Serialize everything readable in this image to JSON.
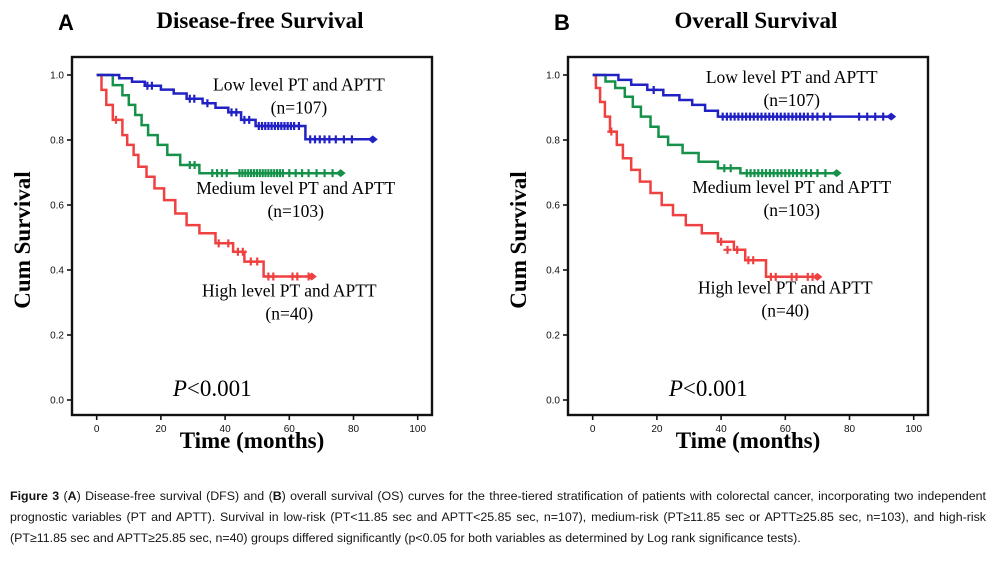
{
  "figure_caption": {
    "segments": [
      {
        "text": "Figure 3 ",
        "bold": true
      },
      {
        "text": "(",
        "bold": false
      },
      {
        "text": "A",
        "bold": true
      },
      {
        "text": ") Disease-free survival (DFS) and (",
        "bold": false
      },
      {
        "text": "B",
        "bold": true
      },
      {
        "text": ") overall survival (OS) curves for the three-tiered stratification of patients with colorectal cancer, incorporating two independent prognostic variables (PT and APTT). Survival in low-risk (PT<11.85 sec and APTT<25.85 sec, n=107), medium-risk (PT≥11.85 sec or APTT≥25.85 sec, n=103), and high-risk (PT≥11.85 sec and APTT≥25.85 sec, n=40) groups differed significantly (p<0.05 for both variables as determined by Log rank significance tests).",
        "bold": false
      }
    ]
  },
  "chart_data": [
    {
      "type": "line",
      "subtype": "kaplan_meier_step",
      "panel": "A",
      "title": "Disease-free Survival",
      "xlabel": "Time (months)",
      "ylabel": "Cum Survival",
      "xlim": [
        0,
        100
      ],
      "ylim": [
        0.0,
        1.0
      ],
      "xticks": [
        0,
        20,
        40,
        60,
        80,
        100
      ],
      "yticks": [
        0.0,
        0.2,
        0.4,
        0.6,
        0.8,
        1.0
      ],
      "grid": false,
      "legend": "in-plot labels",
      "pvalue": {
        "italic": "P",
        "rest": "<0.001",
        "pos": [
          36,
          0.012
        ]
      },
      "series": [
        {
          "name": "Low level PT and APTT",
          "n": 107,
          "color": "#2222c4",
          "label_lines": [
            "Low level PT and APTT",
            "(n=107)"
          ],
          "label_pos": [
            63,
            0.952
          ],
          "steps": [
            [
              0,
              1.0
            ],
            [
              7,
              0.99
            ],
            [
              11,
              0.979
            ],
            [
              15,
              0.967
            ],
            [
              20,
              0.955
            ],
            [
              24,
              0.943
            ],
            [
              28,
              0.927
            ],
            [
              33,
              0.913
            ],
            [
              37,
              0.899
            ],
            [
              41,
              0.885
            ],
            [
              45,
              0.862
            ],
            [
              49.5,
              0.843
            ],
            [
              65,
              0.802
            ],
            [
              86,
              0.802
            ]
          ],
          "censors": [
            [
              15.8,
              0.967
            ],
            [
              17.2,
              0.967
            ],
            [
              29,
              0.927
            ],
            [
              30.4,
              0.927
            ],
            [
              34.5,
              0.913
            ],
            [
              42,
              0.885
            ],
            [
              43.5,
              0.885
            ],
            [
              46,
              0.862
            ],
            [
              47.5,
              0.862
            ],
            [
              50.5,
              0.843
            ],
            [
              51.5,
              0.843
            ],
            [
              52.5,
              0.843
            ],
            [
              53.5,
              0.843
            ],
            [
              54.5,
              0.843
            ],
            [
              55.5,
              0.843
            ],
            [
              56.5,
              0.843
            ],
            [
              57.5,
              0.843
            ],
            [
              58.5,
              0.843
            ],
            [
              59.5,
              0.843
            ],
            [
              60.5,
              0.843
            ],
            [
              61.5,
              0.843
            ],
            [
              63,
              0.843
            ],
            [
              66.5,
              0.802
            ],
            [
              68,
              0.802
            ],
            [
              69.5,
              0.802
            ],
            [
              71,
              0.802
            ],
            [
              72.5,
              0.802
            ],
            [
              74.5,
              0.802
            ],
            [
              77,
              0.802
            ],
            [
              79.5,
              0.802
            ]
          ]
        },
        {
          "name": "Medium level PT and APTT",
          "n": 103,
          "color": "#16914a",
          "label_lines": [
            "Medium level PT and APTT",
            "(n=103)"
          ],
          "label_pos": [
            62,
            0.634
          ],
          "steps": [
            [
              0,
              1.0
            ],
            [
              5,
              0.969
            ],
            [
              8,
              0.938
            ],
            [
              10,
              0.908
            ],
            [
              12,
              0.877
            ],
            [
              14,
              0.846
            ],
            [
              16,
              0.815
            ],
            [
              19,
              0.785
            ],
            [
              22,
              0.754
            ],
            [
              26,
              0.723
            ],
            [
              32,
              0.698
            ],
            [
              76,
              0.698
            ]
          ],
          "censors": [
            [
              29,
              0.723
            ],
            [
              30.5,
              0.723
            ],
            [
              36,
              0.698
            ],
            [
              37.5,
              0.698
            ],
            [
              39,
              0.698
            ],
            [
              40.5,
              0.698
            ],
            [
              44.5,
              0.698
            ],
            [
              45.4,
              0.698
            ],
            [
              46.3,
              0.698
            ],
            [
              47.2,
              0.698
            ],
            [
              48.1,
              0.698
            ],
            [
              49,
              0.698
            ],
            [
              49.9,
              0.698
            ],
            [
              50.8,
              0.698
            ],
            [
              51.7,
              0.698
            ],
            [
              52.6,
              0.698
            ],
            [
              53.5,
              0.698
            ],
            [
              54.4,
              0.698
            ],
            [
              55.3,
              0.698
            ],
            [
              56.2,
              0.698
            ],
            [
              57.1,
              0.698
            ],
            [
              58,
              0.698
            ],
            [
              60,
              0.698
            ],
            [
              62,
              0.698
            ],
            [
              64,
              0.698
            ],
            [
              66,
              0.698
            ],
            [
              68.5,
              0.698
            ],
            [
              71,
              0.698
            ],
            [
              73.5,
              0.698
            ]
          ]
        },
        {
          "name": "High level PT and APTT",
          "n": 40,
          "color": "#f04141",
          "label_lines": [
            "High level PT and APTT",
            "(n=40)"
          ],
          "label_pos": [
            60,
            0.318
          ],
          "steps": [
            [
              0,
              1.0
            ],
            [
              1.5,
              0.954
            ],
            [
              3,
              0.908
            ],
            [
              5,
              0.862
            ],
            [
              8,
              0.815
            ],
            [
              9.5,
              0.785
            ],
            [
              11.5,
              0.754
            ],
            [
              13,
              0.718
            ],
            [
              15.5,
              0.687
            ],
            [
              18,
              0.651
            ],
            [
              21,
              0.615
            ],
            [
              24.5,
              0.574
            ],
            [
              28,
              0.538
            ],
            [
              32,
              0.513
            ],
            [
              37,
              0.482
            ],
            [
              42.5,
              0.456
            ],
            [
              46,
              0.426
            ],
            [
              52,
              0.38
            ],
            [
              67,
              0.38
            ]
          ],
          "censors": [
            [
              6,
              0.862
            ],
            [
              38,
              0.482
            ],
            [
              41,
              0.482
            ],
            [
              44,
              0.456
            ],
            [
              45.5,
              0.456
            ],
            [
              48,
              0.426
            ],
            [
              50,
              0.426
            ],
            [
              53.5,
              0.38
            ],
            [
              55,
              0.38
            ],
            [
              61,
              0.38
            ],
            [
              62.5,
              0.38
            ],
            [
              66,
              0.38
            ]
          ]
        }
      ]
    },
    {
      "type": "line",
      "subtype": "kaplan_meier_step",
      "panel": "B",
      "title": "Overall Survival",
      "xlabel": "Time (months)",
      "ylabel": "Cum Survival",
      "xlim": [
        0,
        100
      ],
      "ylim": [
        0.0,
        1.0
      ],
      "xticks": [
        0,
        20,
        40,
        60,
        80,
        100
      ],
      "yticks": [
        0.0,
        0.2,
        0.4,
        0.6,
        0.8,
        1.0
      ],
      "grid": false,
      "legend": "in-plot labels",
      "pvalue": {
        "italic": "P",
        "rest": "<0.001",
        "pos": [
          36,
          0.012
        ]
      },
      "series": [
        {
          "name": "Low level PT and APTT",
          "n": 107,
          "color": "#2222c4",
          "label_lines": [
            "Low level PT and APTT",
            "(n=107)"
          ],
          "label_pos": [
            62,
            0.975
          ],
          "steps": [
            [
              0,
              1.0
            ],
            [
              8,
              0.985
            ],
            [
              12,
              0.97
            ],
            [
              17,
              0.954
            ],
            [
              22,
              0.938
            ],
            [
              27,
              0.923
            ],
            [
              31,
              0.908
            ],
            [
              35,
              0.89
            ],
            [
              39,
              0.872
            ],
            [
              93,
              0.872
            ]
          ],
          "censors": [
            [
              19,
              0.954
            ],
            [
              40.5,
              0.872
            ],
            [
              41.8,
              0.872
            ],
            [
              43,
              0.872
            ],
            [
              44.2,
              0.872
            ],
            [
              45.4,
              0.872
            ],
            [
              46.6,
              0.872
            ],
            [
              47.8,
              0.872
            ],
            [
              49,
              0.872
            ],
            [
              50.2,
              0.872
            ],
            [
              51.4,
              0.872
            ],
            [
              52.6,
              0.872
            ],
            [
              53.8,
              0.872
            ],
            [
              55,
              0.872
            ],
            [
              56.2,
              0.872
            ],
            [
              57.4,
              0.872
            ],
            [
              58.6,
              0.872
            ],
            [
              59.8,
              0.872
            ],
            [
              61,
              0.872
            ],
            [
              62.2,
              0.872
            ],
            [
              63.4,
              0.872
            ],
            [
              64.6,
              0.872
            ],
            [
              65.8,
              0.872
            ],
            [
              67,
              0.872
            ],
            [
              68.5,
              0.872
            ],
            [
              70,
              0.872
            ],
            [
              72,
              0.872
            ],
            [
              74,
              0.872
            ],
            [
              83,
              0.872
            ],
            [
              85.5,
              0.872
            ],
            [
              88,
              0.872
            ],
            [
              90.5,
              0.872
            ]
          ]
        },
        {
          "name": "Medium level PT and APTT",
          "n": 103,
          "color": "#16914a",
          "label_lines": [
            "Medium level PT and APTT",
            "(n=103)"
          ],
          "label_pos": [
            62,
            0.637
          ],
          "steps": [
            [
              0,
              1.0
            ],
            [
              4,
              0.98
            ],
            [
              7,
              0.96
            ],
            [
              10,
              0.933
            ],
            [
              12.5,
              0.902
            ],
            [
              15,
              0.872
            ],
            [
              18,
              0.841
            ],
            [
              20.5,
              0.81
            ],
            [
              23.5,
              0.785
            ],
            [
              28,
              0.76
            ],
            [
              33,
              0.733
            ],
            [
              39,
              0.713
            ],
            [
              46,
              0.698
            ],
            [
              76,
              0.698
            ]
          ],
          "censors": [
            [
              41,
              0.713
            ],
            [
              43,
              0.713
            ],
            [
              48,
              0.698
            ],
            [
              49.2,
              0.698
            ],
            [
              50.4,
              0.698
            ],
            [
              51.6,
              0.698
            ],
            [
              52.8,
              0.698
            ],
            [
              54,
              0.698
            ],
            [
              55.2,
              0.698
            ],
            [
              56.4,
              0.698
            ],
            [
              57.6,
              0.698
            ],
            [
              58.8,
              0.698
            ],
            [
              60,
              0.698
            ],
            [
              61.2,
              0.698
            ],
            [
              62.4,
              0.698
            ],
            [
              63.6,
              0.698
            ],
            [
              65,
              0.698
            ],
            [
              66.5,
              0.698
            ],
            [
              68,
              0.698
            ],
            [
              70,
              0.698
            ],
            [
              72.5,
              0.698
            ]
          ]
        },
        {
          "name": "High level PT and APTT",
          "n": 40,
          "color": "#f04141",
          "label_lines": [
            "High level PT and APTT",
            "(n=40)"
          ],
          "label_pos": [
            60,
            0.327
          ],
          "steps": [
            [
              0,
              1.0
            ],
            [
              1,
              0.96
            ],
            [
              2.3,
              0.917
            ],
            [
              3.8,
              0.872
            ],
            [
              5.4,
              0.826
            ],
            [
              7.5,
              0.785
            ],
            [
              9.4,
              0.744
            ],
            [
              12,
              0.708
            ],
            [
              14.7,
              0.672
            ],
            [
              18,
              0.637
            ],
            [
              21.5,
              0.6
            ],
            [
              25,
              0.569
            ],
            [
              29,
              0.538
            ],
            [
              34,
              0.513
            ],
            [
              39,
              0.487
            ],
            [
              44,
              0.462
            ],
            [
              47.5,
              0.43
            ],
            [
              54,
              0.379
            ],
            [
              70,
              0.379
            ]
          ],
          "censors": [
            [
              5.8,
              0.826
            ],
            [
              40,
              0.487
            ],
            [
              42,
              0.462
            ],
            [
              45,
              0.462
            ],
            [
              48.5,
              0.43
            ],
            [
              50,
              0.43
            ],
            [
              55.5,
              0.379
            ],
            [
              57,
              0.379
            ],
            [
              62,
              0.379
            ],
            [
              63.5,
              0.379
            ],
            [
              67,
              0.379
            ],
            [
              68.5,
              0.379
            ]
          ]
        }
      ]
    }
  ]
}
